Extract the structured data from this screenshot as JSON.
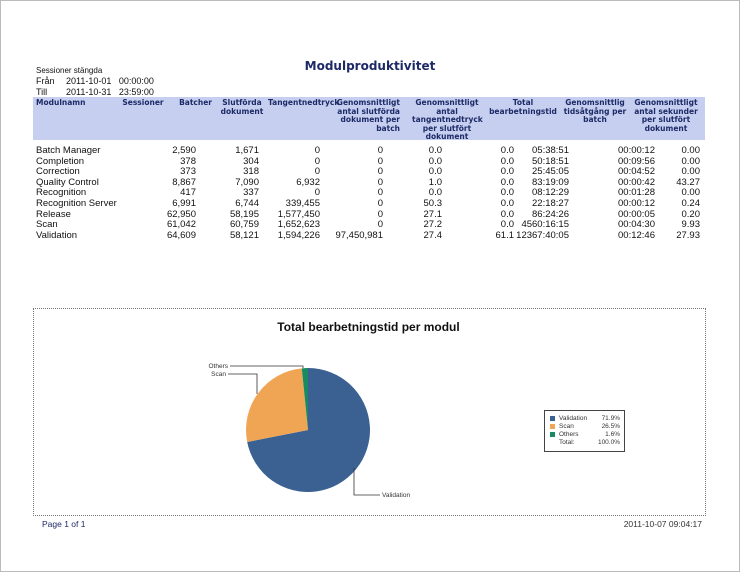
{
  "report": {
    "title": "Modulproduktivitet",
    "filter_label": "Sessioner stängda",
    "from_label": "Från",
    "from_value": "2011-10-01   00:00:00",
    "to_label": "Till",
    "to_value": "2011-10-31   23:59:00"
  },
  "table": {
    "headers": [
      "Modulnamn",
      "Sessioner",
      "Batcher",
      "Slutförda dokument",
      "Tangentnedtryck",
      "Genomsnittligt antal slutförda dokument per batch",
      "Genomsnittligt antal tangentnedtryck per slutfört dokument",
      "Total bearbetningstid",
      "Genomsnittlig tidsåtgång per batch",
      "Genomsnittligt antal sekunder per slutfört dokument"
    ],
    "rows": [
      [
        "Batch Manager",
        "2,590",
        "1,671",
        "0",
        "0",
        "0.0",
        "0.0",
        "05:38:51",
        "00:00:12",
        "0.00"
      ],
      [
        "Completion",
        "378",
        "304",
        "0",
        "0",
        "0.0",
        "0.0",
        "50:18:51",
        "00:09:56",
        "0.00"
      ],
      [
        "Correction",
        "373",
        "318",
        "0",
        "0",
        "0.0",
        "0.0",
        "25:45:05",
        "00:04:52",
        "0.00"
      ],
      [
        "Quality Control",
        "8,867",
        "7,090",
        "6,932",
        "0",
        "1.0",
        "0.0",
        "83:19:09",
        "00:00:42",
        "43.27"
      ],
      [
        "Recognition",
        "417",
        "337",
        "0",
        "0",
        "0.0",
        "0.0",
        "08:12:29",
        "00:01:28",
        "0.00"
      ],
      [
        "Recognition Server",
        "6,991",
        "6,744",
        "339,455",
        "0",
        "50.3",
        "0.0",
        "22:18:27",
        "00:00:12",
        "0.24"
      ],
      [
        "Release",
        "62,950",
        "58,195",
        "1,577,450",
        "0",
        "27.1",
        "0.0",
        "86:24:26",
        "00:00:05",
        "0.20"
      ],
      [
        "Scan",
        "61,042",
        "60,759",
        "1,652,623",
        "0",
        "27.2",
        "0.0",
        "4560:16:15",
        "00:04:30",
        "9.93"
      ],
      [
        "Validation",
        "64,609",
        "58,121",
        "1,594,226",
        "97,450,981",
        "27.4",
        "61.1",
        "12367:40:05",
        "00:12:46",
        "27.93"
      ]
    ]
  },
  "chart_data": {
    "type": "pie",
    "title": "Total bearbetningstid per modul",
    "slices": [
      {
        "label": "Validation",
        "percent": 71.9,
        "percent_label": "71.9%",
        "color": "#3a6192"
      },
      {
        "label": "Scan",
        "percent": 26.5,
        "percent_label": "26.5%",
        "color": "#f0a555"
      },
      {
        "label": "Others",
        "percent": 1.6,
        "percent_label": "1.6%",
        "color": "#1a8a63"
      }
    ],
    "total_label": "Total:",
    "total_value": "100.0%",
    "legend": "right"
  },
  "footer": {
    "page": "Page 1 of 1",
    "timestamp": "2011-10-07 09:04:17"
  }
}
